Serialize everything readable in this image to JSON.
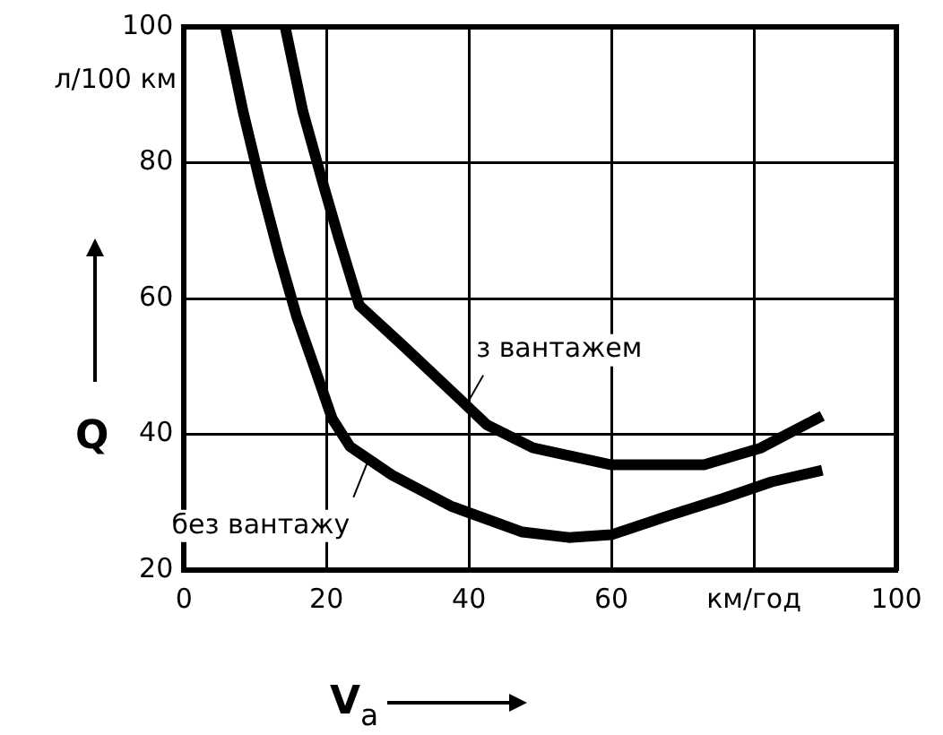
{
  "chart_data": {
    "type": "line",
    "xlabel": "V$_{a}$",
    "ylabel": "Q",
    "xlim": [
      0,
      100
    ],
    "xticks": [
      0,
      20,
      40,
      60,
      {
        "value": 80,
        "label": "км/год"
      },
      100
    ],
    "ylim": [
      20,
      100
    ],
    "yticks": [
      20,
      40,
      60,
      80,
      100
    ],
    "grid": true,
    "legend": false,
    "marker": "none",
    "line_style": "solid",
    "series": [
      {
        "color": "#000000",
        "x": [
          14.2,
          16.7,
          19.6,
          21.7,
          24.6,
          30.8,
          37.5,
          42.5,
          49,
          60,
          73,
          81,
          85,
          89.6
        ],
        "values": [
          100,
          87.5,
          76.6,
          69,
          59,
          53,
          46.4,
          41.4,
          38,
          35.5,
          35.5,
          38,
          40.2,
          42.7
        ]
      },
      {
        "color": "#000000",
        "x": [
          5.8,
          8.3,
          10.8,
          13.3,
          15.8,
          18.3,
          20.8,
          23.3,
          29.2,
          37.5,
          47.5,
          54,
          60,
          68.3,
          75.8,
          82.5,
          89.6
        ],
        "values": [
          100,
          87.5,
          76.6,
          66.6,
          57.4,
          49.9,
          42.3,
          38.2,
          34,
          29.4,
          25.6,
          24.8,
          25.2,
          28.1,
          30.6,
          33,
          34.7
        ]
      }
    ],
    "annotations": [
      {
        "text": "з вантажем",
        "x": 40,
        "y": 45
      },
      {
        "text": "без вантажу",
        "x": 25.8,
        "y": 36
      },
      "л/100 км"
    ]
  }
}
